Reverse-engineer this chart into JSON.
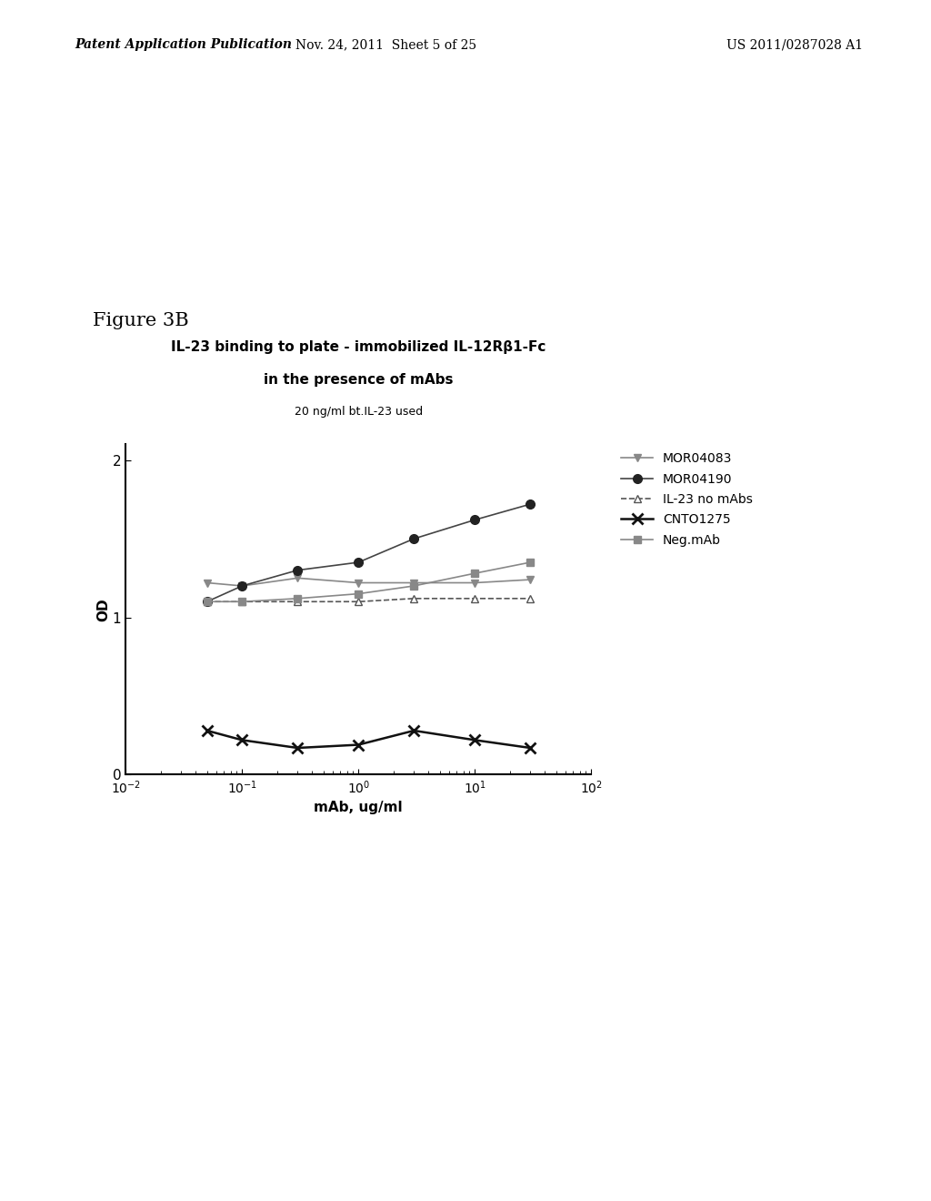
{
  "title_line1": "IL-23 binding to plate - immobilized IL-12Rβ1-Fc",
  "title_line2": "in the presence of mAbs",
  "subtitle": "20 ng/ml bt.IL-23 used",
  "xlabel": "mAb, ug/ml",
  "ylabel": "OD",
  "figure_label": "Figure 3B",
  "header_left": "Patent Application Publication",
  "header_center": "Nov. 24, 2011  Sheet 5 of 25",
  "header_right": "US 2011/0287028 A1",
  "x_values": [
    0.05,
    0.1,
    0.3,
    1.0,
    3.0,
    10.0,
    30.0
  ],
  "MOR04083": [
    1.22,
    1.2,
    1.25,
    1.22,
    1.22,
    1.22,
    1.24
  ],
  "MOR04190": [
    1.1,
    1.2,
    1.3,
    1.35,
    1.5,
    1.62,
    1.72
  ],
  "IL23_no_mAbs": [
    1.1,
    1.1,
    1.1,
    1.1,
    1.12,
    1.12,
    1.12
  ],
  "CNTO1275": [
    0.28,
    0.22,
    0.17,
    0.19,
    0.28,
    0.22,
    0.17
  ],
  "Neg_mAb": [
    1.1,
    1.1,
    1.12,
    1.15,
    1.2,
    1.28,
    1.35
  ],
  "ylim_max": 2.1,
  "color_MOR04083": "#888888",
  "color_MOR04190": "#444444",
  "color_IL23": "#555555",
  "color_CNTO1275": "#111111",
  "color_Neg": "#888888",
  "background_color": "#ffffff"
}
